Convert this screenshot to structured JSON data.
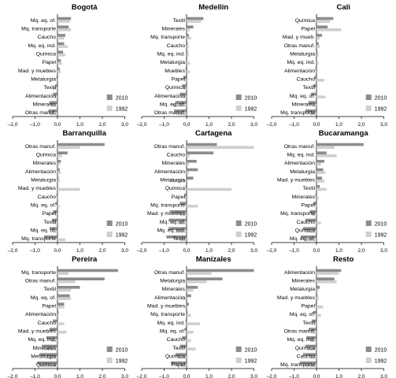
{
  "legend": {
    "series_2010": "2010",
    "series_1992": "1992"
  },
  "colors": {
    "series_2010": "#8c8c8c",
    "series_1992": "#cfcfcf",
    "axis": "#000000"
  },
  "x_ticks": [
    "–2,0",
    "–1,0",
    "0,0",
    "1,0",
    "2,0",
    "3,0"
  ],
  "chart_data": [
    {
      "type": "bar",
      "title": "Bogotá",
      "xlim": [
        -2,
        3
      ],
      "categories": [
        "Mq. eq. of.",
        "Mq. transporte",
        "Caucho",
        "Mq. eq. ind.",
        "Química",
        "Papel",
        "Mad. y muebles",
        "Metalurgia",
        "Textil",
        "Alimentación",
        "Minerales",
        "Otras manuf."
      ],
      "series": [
        {
          "name": "2010",
          "values": [
            0.6,
            0.5,
            0.35,
            0.3,
            0.25,
            0.15,
            0.1,
            -0.05,
            -0.1,
            -0.2,
            -0.35,
            -0.4
          ]
        },
        {
          "name": "1992",
          "values": [
            0.55,
            0.6,
            0.3,
            0.45,
            0.35,
            0.2,
            0.15,
            0.05,
            -0.2,
            -0.15,
            -0.3,
            -0.35
          ]
        }
      ]
    },
    {
      "type": "bar",
      "title": "Medellín",
      "xlim": [
        -2,
        3
      ],
      "categories": [
        "Textil",
        "Minerales",
        "Mq. transporte",
        "Caucho",
        "Mq. eq. ind.",
        "Metalurgia",
        "Muebles",
        "Papel",
        "Química",
        "Alimentación",
        "Mq. eq. of.",
        "Otras manuf."
      ],
      "series": [
        {
          "name": "2010",
          "values": [
            0.75,
            0.3,
            0.1,
            0.05,
            0.05,
            0.0,
            -0.05,
            -0.15,
            -0.2,
            -0.3,
            -0.5,
            -0.55
          ]
        },
        {
          "name": "1992",
          "values": [
            0.65,
            0.15,
            0.2,
            0.1,
            0.1,
            0.15,
            0.15,
            -0.1,
            -0.1,
            -0.2,
            -0.6,
            -0.45
          ]
        }
      ]
    },
    {
      "type": "bar",
      "title": "Cali",
      "xlim": [
        -2,
        3
      ],
      "categories": [
        "Química",
        "Papel",
        "Mad. y mueb.",
        "Otras manuf.",
        "Metalurgia",
        "Mq. eq. ind.",
        "Alimentación",
        "Caucho",
        "Textil",
        "Mq. eq. of.",
        "Minerales",
        "Mq. transporte"
      ],
      "series": [
        {
          "name": "2010",
          "values": [
            0.75,
            0.5,
            0.25,
            0.1,
            0.05,
            0.0,
            -0.05,
            -0.1,
            -0.15,
            -0.25,
            -0.35,
            -0.5
          ]
        },
        {
          "name": "1992",
          "values": [
            0.6,
            1.1,
            0.15,
            0.15,
            0.1,
            0.1,
            0.05,
            0.35,
            -0.05,
            0.4,
            -0.2,
            -0.3
          ]
        }
      ]
    },
    {
      "type": "bar",
      "title": "Barranquilla",
      "xlim": [
        -2,
        3
      ],
      "categories": [
        "Otras manuf.",
        "Química",
        "Minerales",
        "Alimentación",
        "Metalurgia",
        "Mad. y muebles",
        "Caucho",
        "Mq. eq. of.",
        "Papel",
        "Textil",
        "Mq. eq. of.",
        "Mq. transporte"
      ],
      "series": [
        {
          "name": "2010",
          "values": [
            2.1,
            0.45,
            0.15,
            0.1,
            0.05,
            0.0,
            -0.05,
            -0.1,
            -0.2,
            -0.25,
            -0.35,
            -0.6
          ]
        },
        {
          "name": "1992",
          "values": [
            1.0,
            0.2,
            0.1,
            0.15,
            0.1,
            1.0,
            0.05,
            0.1,
            -0.1,
            -0.15,
            -0.2,
            0.35
          ]
        }
      ]
    },
    {
      "type": "bar",
      "title": "Cartagena",
      "xlim": [
        -2,
        3
      ],
      "categories": [
        "Otras manuf.",
        "Caucho",
        "Minerales",
        "Alimentación",
        "Metalurgia",
        "Química",
        "Papel",
        "Mq. transporte",
        "Mad. y muebles",
        "Mq. eq. of.",
        "Mq. eq. ind.",
        "Textil"
      ],
      "series": [
        {
          "name": "2010",
          "values": [
            1.35,
            1.2,
            0.45,
            0.5,
            0.3,
            -0.05,
            -0.1,
            -0.3,
            -0.75,
            -0.8,
            -0.8,
            -0.9
          ]
        },
        {
          "name": "1992",
          "values": [
            3.0,
            0.15,
            0.1,
            0.1,
            -0.75,
            2.0,
            -0.1,
            0.5,
            -0.3,
            -0.4,
            -0.5,
            -0.3
          ]
        }
      ]
    },
    {
      "type": "bar",
      "title": "Bucaramanga",
      "xlim": [
        -2,
        3
      ],
      "categories": [
        "Otras manuf.",
        "Mq. eq. ind.",
        "Alimentación",
        "Metalurgia",
        "Mad. y muebles",
        "Textil",
        "Minerales",
        "Papel",
        "Mq. transporte",
        "Caucho",
        "Química",
        "Mq. eq. of."
      ],
      "series": [
        {
          "name": "2010",
          "values": [
            2.1,
            0.45,
            0.35,
            0.3,
            0.25,
            0.15,
            -0.05,
            -0.15,
            -0.3,
            -0.5,
            -0.6,
            -0.7
          ]
        },
        {
          "name": "1992",
          "values": [
            0.8,
            0.9,
            0.2,
            0.4,
            0.35,
            0.45,
            0.1,
            0.05,
            -0.2,
            0.2,
            -0.5,
            -0.55
          ]
        }
      ]
    },
    {
      "type": "bar",
      "title": "Pereira",
      "xlim": [
        -2,
        3
      ],
      "categories": [
        "Mq. transporte",
        "Otras manuf.",
        "Textil",
        "Mq. eq. of.",
        "Papel",
        "Alimentación",
        "Caucho",
        "Mad. y muebles",
        "Mq. eq. ind.",
        "Minerales",
        "Metalurgia",
        "Química"
      ],
      "series": [
        {
          "name": "2010",
          "values": [
            2.7,
            2.1,
            1.0,
            0.55,
            0.3,
            0.05,
            -0.2,
            -0.35,
            -0.5,
            -0.7,
            -0.8,
            -0.9
          ]
        },
        {
          "name": "1992",
          "values": [
            0.5,
            0.8,
            0.6,
            0.6,
            0.3,
            -0.1,
            0.3,
            0.4,
            -0.3,
            -0.6,
            -0.5,
            -0.8
          ]
        }
      ]
    },
    {
      "type": "bar",
      "title": "Manizales",
      "xlim": [
        -2,
        3
      ],
      "categories": [
        "Otras manuf.",
        "Metalurgia",
        "Minerales",
        "Alimentación",
        "Mad. y muebles",
        "Mq. transporte",
        "Mq. eq. ind.",
        "Mq. eq. of.",
        "Caucho",
        "Textil",
        "Química",
        "Papel"
      ],
      "series": [
        {
          "name": "2010",
          "values": [
            3.0,
            1.6,
            0.5,
            0.2,
            0.1,
            0.05,
            -0.05,
            -0.1,
            -0.2,
            -0.3,
            -0.5,
            -0.7
          ]
        },
        {
          "name": "1992",
          "values": [
            1.1,
            0.9,
            0.3,
            -0.2,
            -0.1,
            0.2,
            0.6,
            0.3,
            0.2,
            0.4,
            -0.4,
            -0.3
          ]
        }
      ]
    },
    {
      "type": "bar",
      "title": "Resto",
      "xlim": [
        -2,
        3
      ],
      "categories": [
        "Alimentación",
        "Minerales",
        "Metalurgia",
        "Mad. y muebles",
        "Papel",
        "Mq. eq. of.",
        "Textil",
        "Otras manuf.",
        "Mq. eq. ind.",
        "Química",
        "Caucho",
        "Mq. transporte"
      ],
      "series": [
        {
          "name": "2010",
          "values": [
            1.1,
            0.8,
            0.15,
            0.05,
            -0.05,
            -0.15,
            -0.2,
            -0.35,
            -0.45,
            -0.5,
            -0.6,
            -0.75
          ]
        },
        {
          "name": "1992",
          "values": [
            1.0,
            0.9,
            0.1,
            0.1,
            0.3,
            0.2,
            -0.1,
            -0.2,
            -0.3,
            -0.4,
            -0.3,
            -0.5
          ]
        }
      ]
    }
  ]
}
